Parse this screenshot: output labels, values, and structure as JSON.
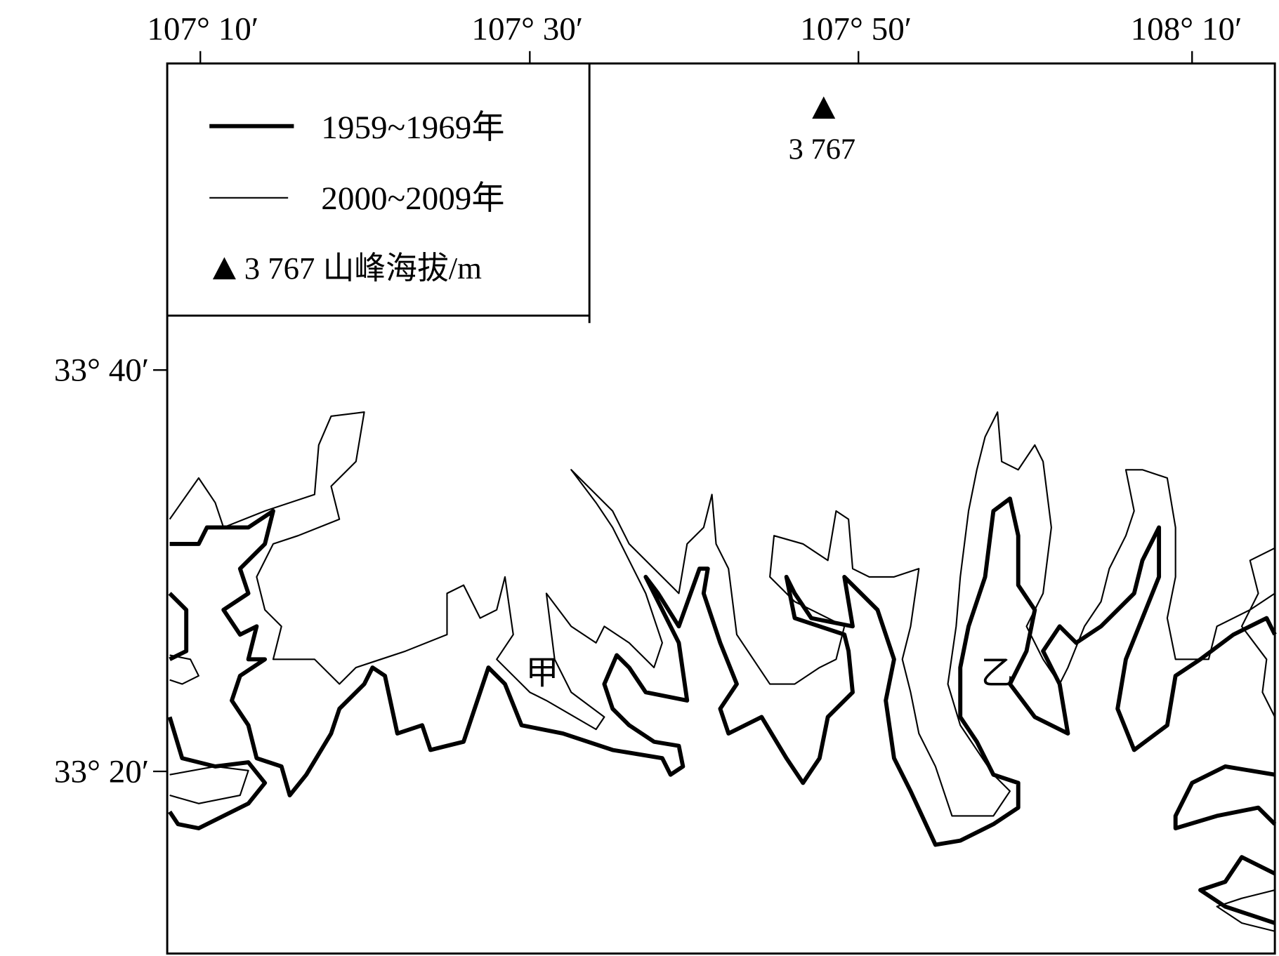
{
  "map": {
    "top_ticks": [
      "107° 10′",
      "107° 30′",
      "107° 50′",
      "108° 10′"
    ],
    "left_ticks": [
      "33° 40′",
      "33° 20′"
    ],
    "legend": {
      "thick_line_label": "1959~1969年",
      "thin_line_label": "2000~2009年",
      "peak_label": "3 767 山峰海拔/m"
    },
    "peak": {
      "icon": "triangle-icon",
      "elevation": "3 767"
    },
    "places": [
      "甲",
      "乙"
    ],
    "colors": {
      "line": "#000000",
      "background": "#ffffff"
    }
  }
}
